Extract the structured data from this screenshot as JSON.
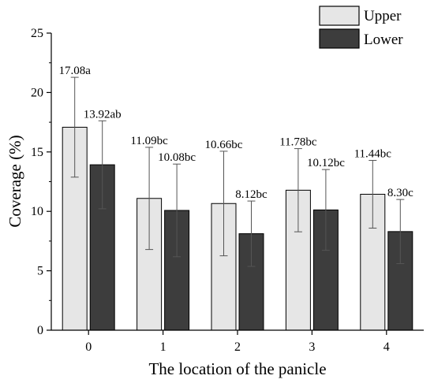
{
  "chart_data": {
    "type": "bar",
    "xlabel": "The location of the panicle",
    "ylabel": "Coverage (%)",
    "ylim": [
      0,
      25
    ],
    "yticks": [
      "0",
      "5",
      "10",
      "15",
      "20",
      "25"
    ],
    "categories": [
      "0",
      "1",
      "2",
      "3",
      "4"
    ],
    "grid": false,
    "legend_position": "top-right",
    "series": [
      {
        "name": "Upper",
        "color": "#e6e6e6",
        "values": [
          17.08,
          11.09,
          10.66,
          11.78,
          11.44
        ],
        "errors": [
          4.2,
          4.3,
          4.4,
          3.5,
          2.85
        ],
        "labels": [
          "17.08a",
          "11.09bc",
          "10.66bc",
          "11.78bc",
          "11.44bc"
        ]
      },
      {
        "name": "Lower",
        "color": "#3d3d3d",
        "values": [
          13.92,
          10.08,
          8.12,
          10.12,
          8.3
        ],
        "errors": [
          3.7,
          3.9,
          2.75,
          3.4,
          2.7
        ],
        "labels": [
          "13.92ab",
          "10.08bc",
          "8.12bc",
          "10.12bc",
          "8.30c"
        ]
      }
    ]
  }
}
